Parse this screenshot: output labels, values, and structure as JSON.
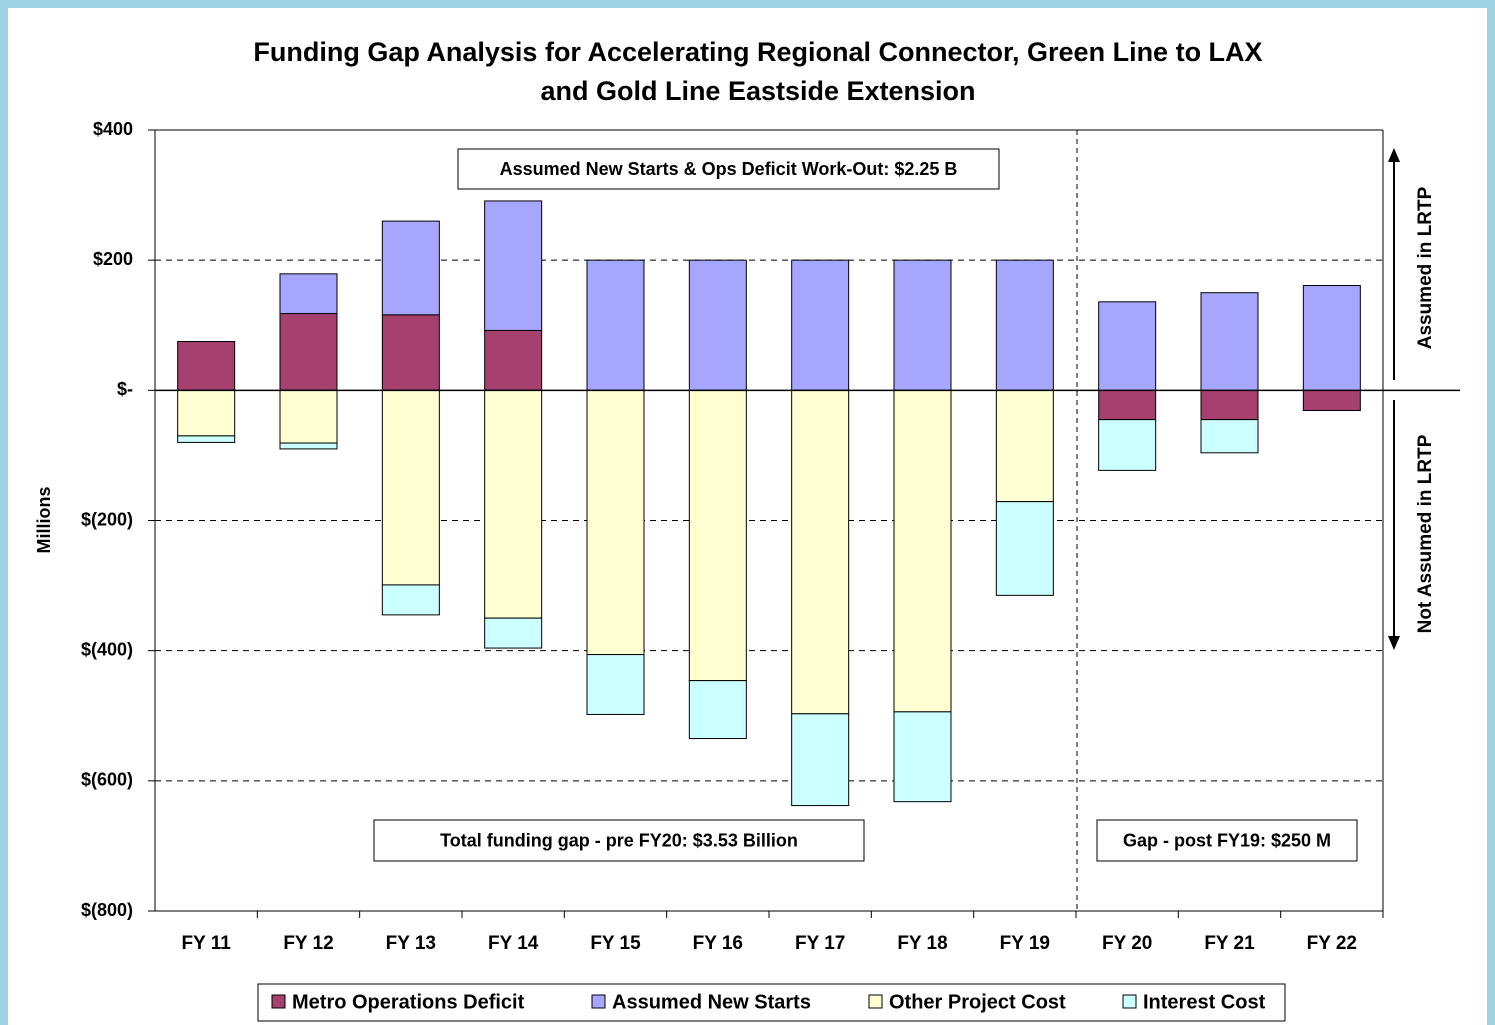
{
  "chart_data": {
    "type": "stacked_bar",
    "title": "Funding Gap Analysis for Accelerating Regional Connector, Green Line to LAX",
    "subtitle": "and Gold Line Eastside Extension",
    "y_label": "Millions",
    "categories": [
      "FY 11",
      "FY 12",
      "FY 13",
      "FY 14",
      "FY 15",
      "FY 16",
      "FY 17",
      "FY 18",
      "FY 19",
      "FY 20",
      "FY 21",
      "FY 22"
    ],
    "series": [
      {
        "name": "Metro Operations Deficit",
        "color": "#a6406f",
        "values": [
          75,
          118,
          116,
          92,
          0,
          0,
          0,
          0,
          0,
          -45,
          -45,
          -31
        ]
      },
      {
        "name": "Assumed New Starts",
        "color": "#a6a6ff",
        "values": [
          0,
          61,
          144,
          199,
          200,
          200,
          200,
          200,
          200,
          136,
          150,
          161
        ]
      },
      {
        "name": "Other Project Cost",
        "color": "#ffffd2",
        "values": [
          -70,
          -81,
          -299,
          -350,
          -406,
          -446,
          -497,
          -494,
          -171,
          0,
          0,
          0
        ]
      },
      {
        "name": "Interest Cost",
        "color": "#ccffff",
        "values": [
          -10,
          -9,
          -46,
          -46,
          -92,
          -89,
          -141,
          -138,
          -144,
          -78,
          -51,
          0
        ]
      }
    ],
    "ylim": [
      -800,
      400
    ],
    "yticks": [
      {
        "value": 400,
        "label": "$400"
      },
      {
        "value": 200,
        "label": "$200"
      },
      {
        "value": 0,
        "label": "$-"
      },
      {
        "value": -200,
        "label": "$(200)"
      },
      {
        "value": -400,
        "label": "$(400)"
      },
      {
        "value": -600,
        "label": "$(600)"
      },
      {
        "value": -800,
        "label": "$(800)"
      }
    ],
    "grid": true,
    "legend": "bottom",
    "annotations": [
      "Assumed New Starts & Ops Deficit Work-Out:  $2.25 B",
      "Total funding gap - pre FY20:  $3.53 Billion",
      "Gap - post FY19:  $250 M",
      "Assumed in LRTP",
      "Not Assumed in LRTP"
    ]
  }
}
